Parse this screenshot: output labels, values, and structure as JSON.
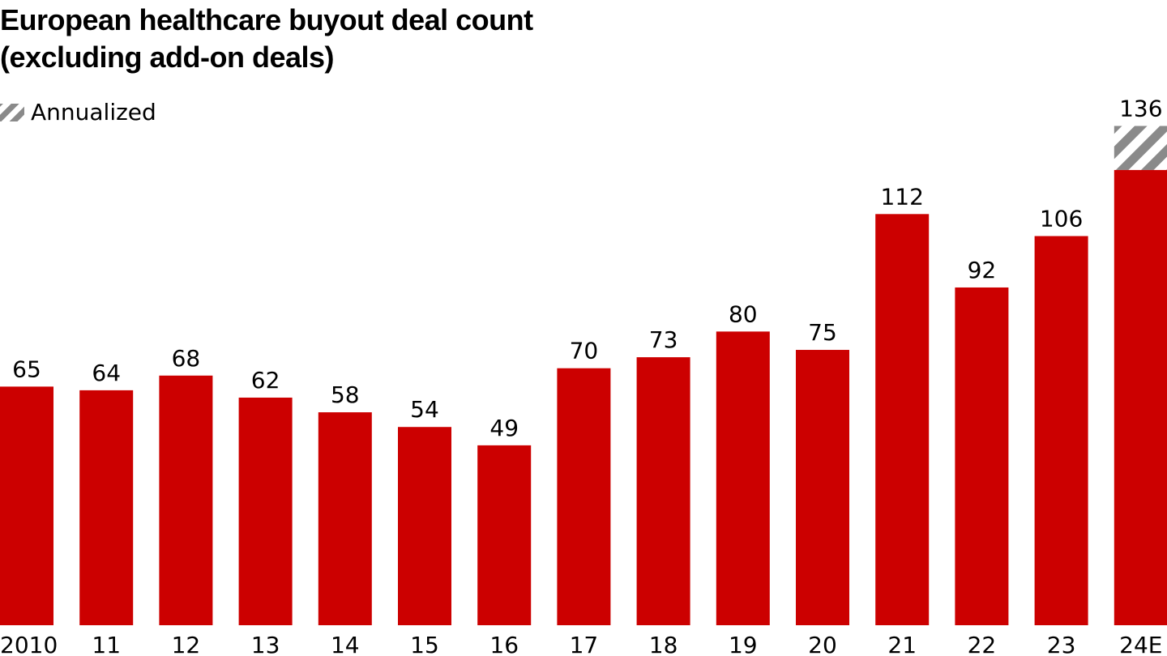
{
  "title_line1": "European healthcare buyout deal count",
  "title_line2": "(excluding add-on deals)",
  "legend": {
    "label": "Annualized",
    "pattern": "diagonal-stripes",
    "color": "#8a8a8a"
  },
  "colors": {
    "bar": "#cc0000",
    "annualized": "#8a8a8a",
    "text": "#000000"
  },
  "chart_data": {
    "type": "bar",
    "title": "European healthcare buyout deal count (excluding add-on deals)",
    "categories": [
      "2010",
      "11",
      "12",
      "13",
      "14",
      "15",
      "16",
      "17",
      "18",
      "19",
      "20",
      "21",
      "22",
      "23",
      "24E"
    ],
    "values": [
      65,
      64,
      68,
      62,
      58,
      54,
      49,
      70,
      73,
      80,
      75,
      112,
      92,
      106,
      136
    ],
    "annualized_portion_of_last_bar": 124,
    "xlabel": "",
    "ylabel": "",
    "ylim": [
      0,
      136
    ],
    "grid": false,
    "legend_position": "top-left"
  }
}
